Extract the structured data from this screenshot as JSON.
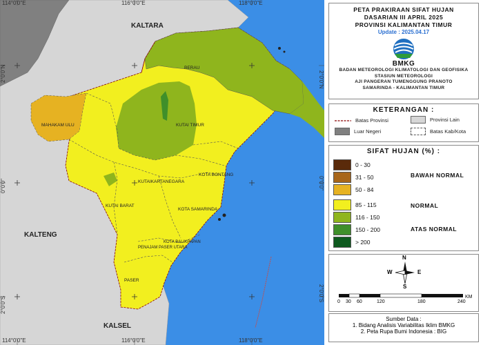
{
  "map": {
    "grid_labels": {
      "top": [
        "114°0'0\"E",
        "116°0'0\"E",
        "118°0'0\"E"
      ],
      "bottom": [
        "114°0'0\"E",
        "116°0'0\"E",
        "118°0'0\"E"
      ],
      "right": [
        "2°0'0\"N",
        "0°0'0\"",
        "2°0'0\"S"
      ],
      "left": [
        "2°0'0\"N",
        "0°0'0\"",
        "2°0'0\"S"
      ]
    },
    "province_labels": [
      "KALTARA",
      "KALTENG",
      "KALSEL"
    ],
    "region_labels": [
      "BERAU",
      "MAHAKAM ULU",
      "KUTAI TIMUR",
      "KUTAIKARTANEGARA",
      "KOTA BONTANG",
      "KUTAI BARAT",
      "KOTA SAMARINDA",
      "KOTA BALIKPAPAN",
      "PENAJAM PASER UTARA",
      "PASER"
    ],
    "colors": {
      "sea": "#3b8ee6",
      "outside": "#d6d6d6",
      "foreign": "#808080",
      "range_50_84": "#e6b222",
      "range_85_115": "#f2ef1f",
      "range_116_150": "#8fb51d"
    }
  },
  "title": {
    "line1": "PETA PRAKIRAAN SIFAT HUJAN",
    "line2": "DASARIAN III APRIL 2025",
    "line3": "PROVINSI KALIMANTAN TIMUR",
    "update": "Update : 2025.04.17",
    "logo_text": "BMKG",
    "agency1": "BADAN METEOROLOGI KLIMATOLOGI DAN GEOFISIKA",
    "agency2": "STASIUN METEOROLOGI",
    "agency3": "AJI PANGERAN TUMENGGUNG PRANOTO",
    "agency4": "SAMARINDA - KALIMANTAN TIMUR"
  },
  "legend": {
    "header": "KETERANGAN :",
    "batas_provinsi": "Batas Provinsi",
    "provinsi_lain": "Provinsi Lain",
    "luar_negeri": "Luar Negeri",
    "batas_kab": "Batas Kab/Kota"
  },
  "sifat_hujan": {
    "header": "SIFAT HUJAN (%) :",
    "ranges": [
      {
        "label": "0 - 30",
        "color": "#5a2a0a"
      },
      {
        "label": "31 - 50",
        "color": "#a8661a"
      },
      {
        "label": "50 - 84",
        "color": "#e6b222"
      },
      {
        "label": "85 - 115",
        "color": "#f2ef1f"
      },
      {
        "label": "116 - 150",
        "color": "#8fb51d"
      },
      {
        "label": "150 - 200",
        "color": "#3f8f2a"
      },
      {
        "label": "> 200",
        "color": "#0e5a1e"
      }
    ],
    "categories": [
      "BAWAH NORMAL",
      "NORMAL",
      "ATAS NORMAL"
    ]
  },
  "compass": {
    "n": "N",
    "s": "S",
    "e": "E",
    "w": "W"
  },
  "scale": {
    "ticks": [
      "0",
      "30",
      "60",
      "120",
      "180",
      "240"
    ],
    "unit": "KM"
  },
  "sources": {
    "header": "Sumber Data :",
    "line1": "1. Bidang Analisis Variabilitas Iklim BMKG",
    "line2": "2. Peta Rupa Bumi Indonesia : BIG"
  }
}
